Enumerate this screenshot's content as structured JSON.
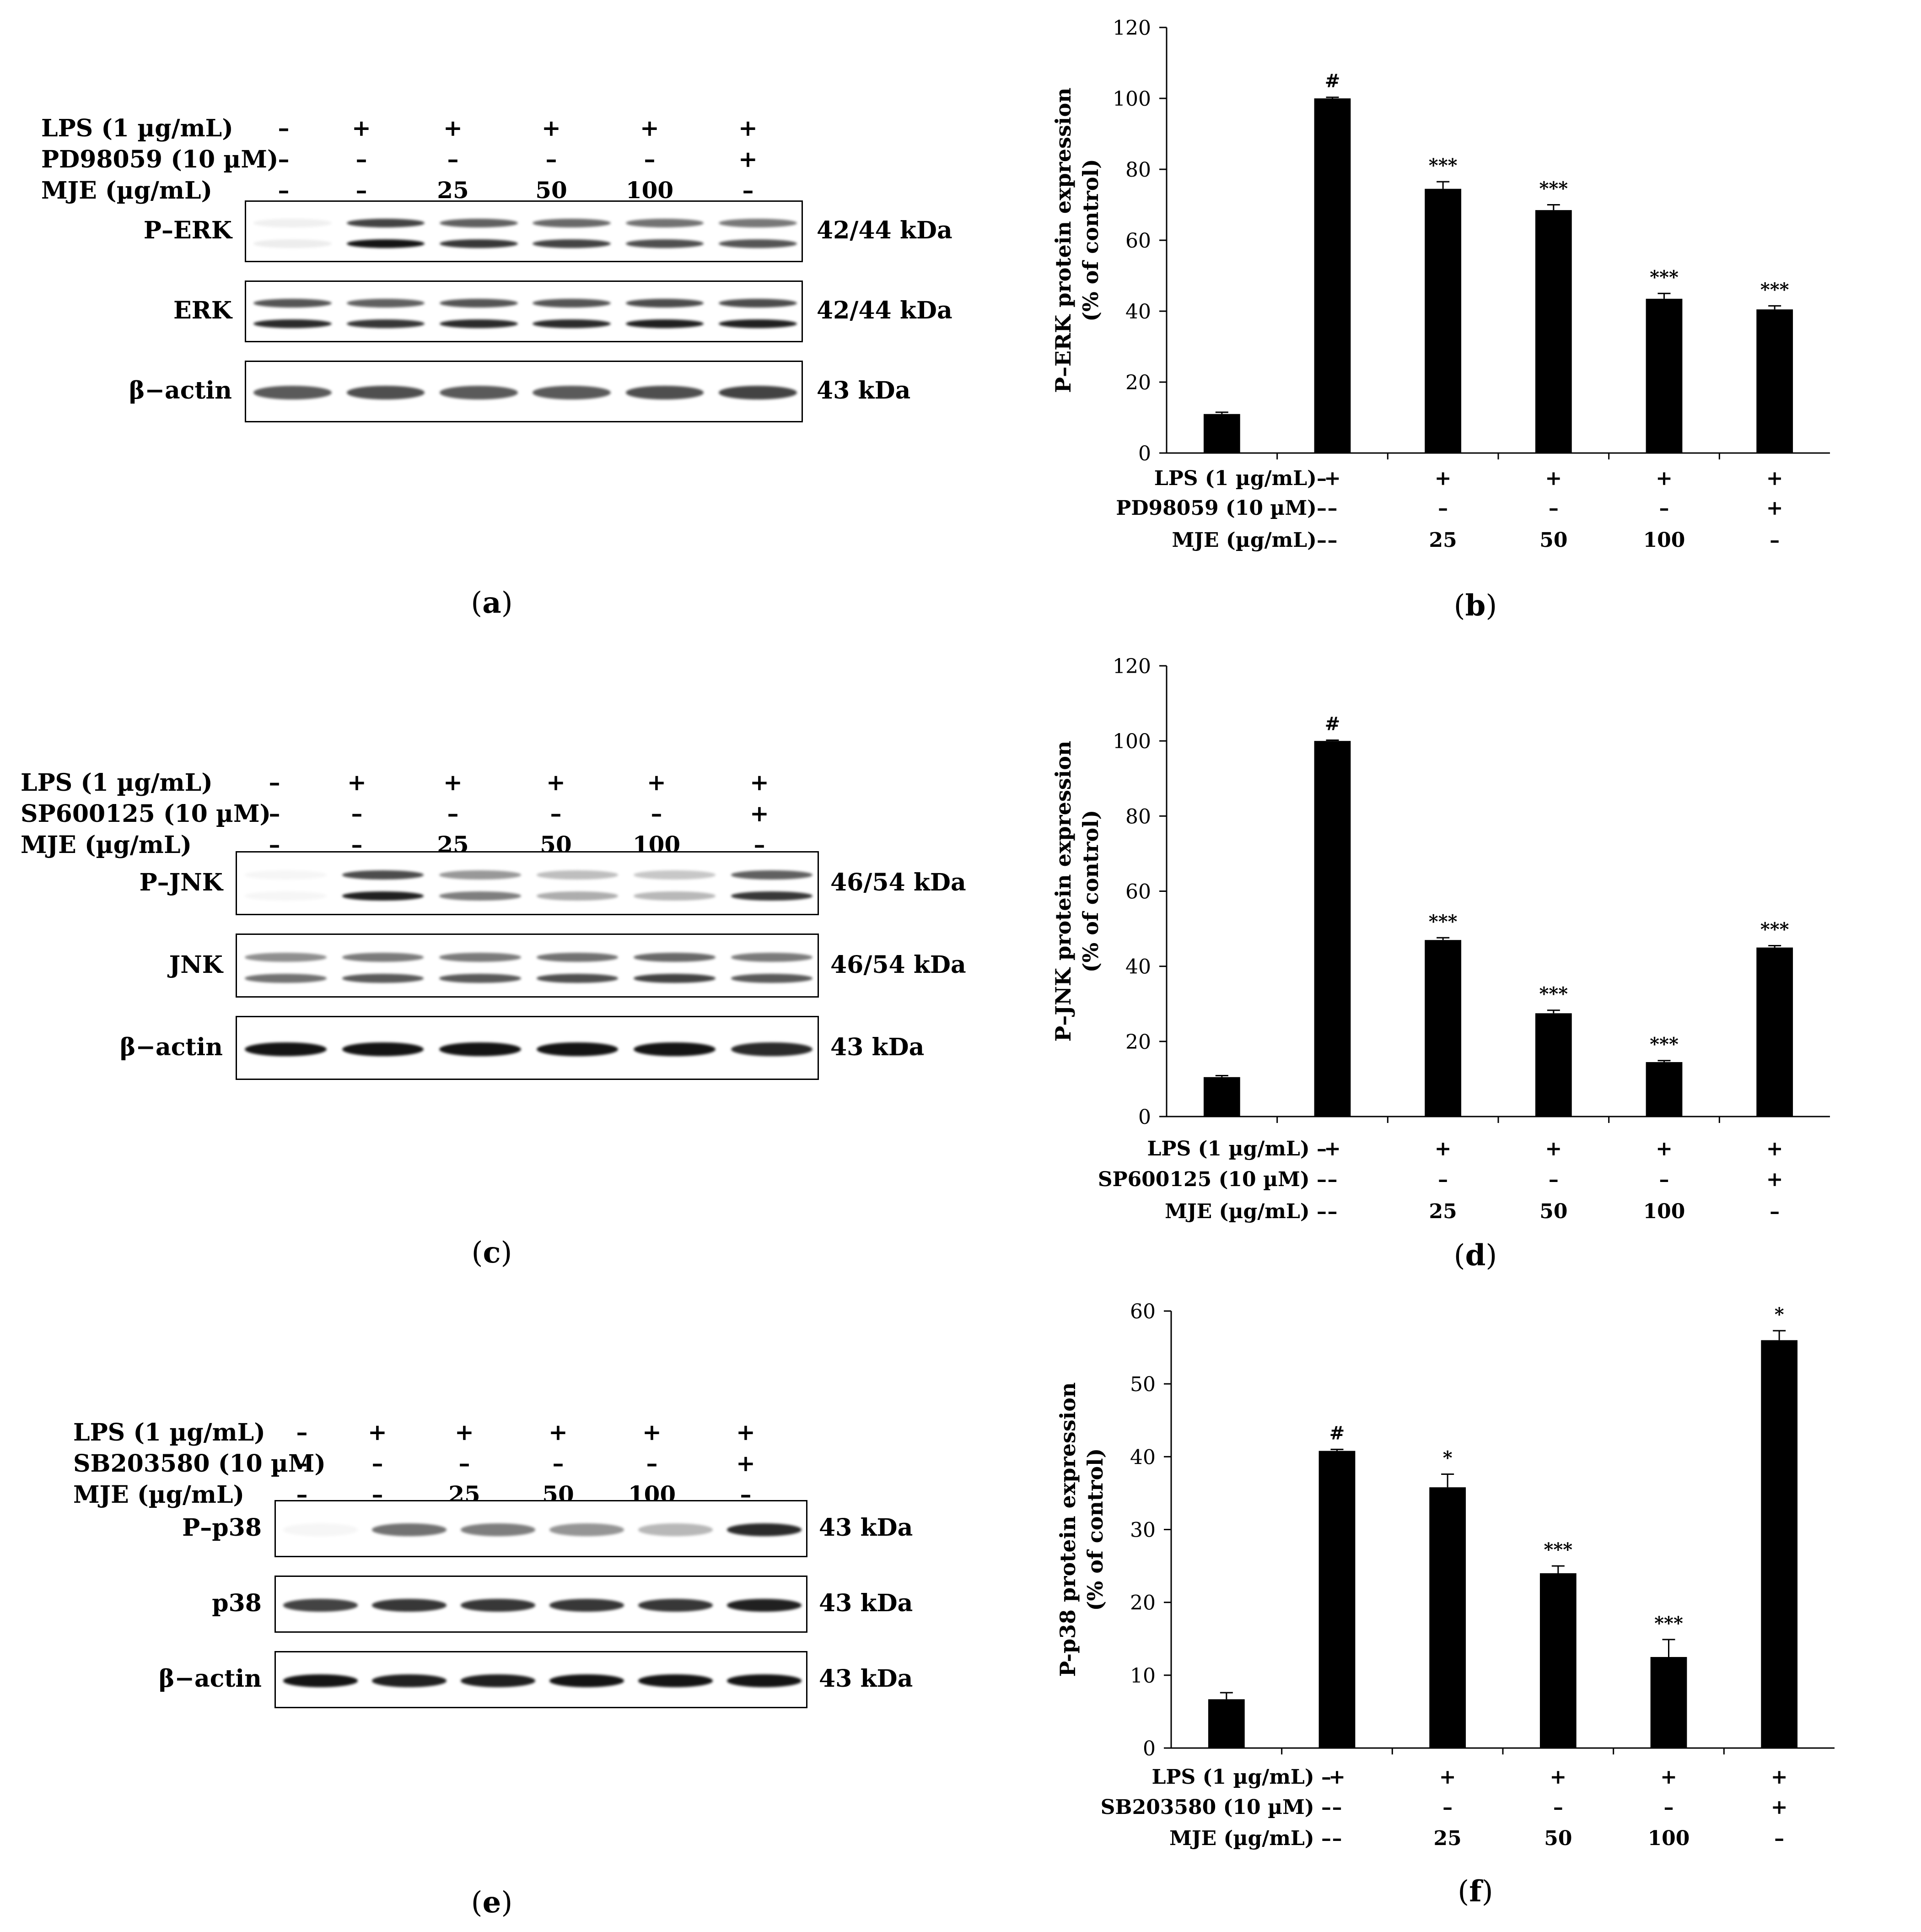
{
  "blots": [
    {
      "caption": "a",
      "conditions": [
        {
          "label": "LPS (1 µg/mL)",
          "values": [
            "–",
            "+",
            "+",
            "+",
            "+",
            "+"
          ]
        },
        {
          "label": "PD98059 (10 µM)",
          "values": [
            "–",
            "–",
            "–",
            "–",
            "–",
            "+"
          ]
        },
        {
          "label": "MJE (µg/mL)",
          "values": [
            "–",
            "–",
            "25",
            "50",
            "100",
            "–"
          ]
        }
      ],
      "rows": [
        {
          "label": "P–ERK",
          "kda": "42/44 kDa",
          "intensity": [
            0.08,
            1,
            0.85,
            0.8,
            0.75,
            0.72
          ],
          "double": true
        },
        {
          "label": "ERK",
          "kda": "42/44 kDa",
          "intensity": [
            0.9,
            0.85,
            0.9,
            0.9,
            0.95,
            0.95
          ],
          "double": true
        },
        {
          "label": "β−actin",
          "kda": "43 kDa",
          "intensity": [
            0.7,
            0.75,
            0.7,
            0.7,
            0.75,
            0.8
          ],
          "double": false
        }
      ]
    },
    {
      "caption": "c",
      "conditions": [
        {
          "label": "LPS (1 µg/mL)",
          "values": [
            "–",
            "+",
            "+",
            "+",
            "+",
            "+"
          ]
        },
        {
          "label": "SP600125 (10 µM)",
          "values": [
            "–",
            "–",
            "–",
            "–",
            "–",
            "+"
          ]
        },
        {
          "label": "MJE (µg/mL)",
          "values": [
            "–",
            "–",
            "25",
            "50",
            "100",
            "–"
          ]
        }
      ],
      "rows": [
        {
          "label": "P–JNK",
          "kda": "46/54 kDa",
          "intensity": [
            0.0,
            0.95,
            0.55,
            0.35,
            0.3,
            0.85
          ],
          "double": true
        },
        {
          "label": "JNK",
          "kda": "46/54 kDa",
          "intensity": [
            0.6,
            0.7,
            0.7,
            0.75,
            0.8,
            0.7
          ],
          "double": true
        },
        {
          "label": "β−actin",
          "kda": "43 kDa",
          "intensity": [
            1,
            1,
            1,
            1,
            1,
            0.9
          ],
          "double": false
        }
      ]
    },
    {
      "caption": "e",
      "conditions": [
        {
          "label": "LPS (1 µg/mL)",
          "values": [
            "–",
            "+",
            "+",
            "+",
            "+",
            "+"
          ]
        },
        {
          "label": "SB203580 (10 µM)",
          "values": [
            "–",
            "–",
            "–",
            "–",
            "–",
            "+"
          ]
        },
        {
          "label": "MJE (µg/mL)",
          "values": [
            "–",
            "–",
            "25",
            "50",
            "100",
            "–"
          ]
        }
      ],
      "rows": [
        {
          "label": "P–p38",
          "kda": "43 kDa",
          "intensity": [
            0.0,
            0.6,
            0.55,
            0.45,
            0.3,
            0.9
          ],
          "double": false
        },
        {
          "label": "p38",
          "kda": "43 kDa",
          "intensity": [
            0.8,
            0.85,
            0.85,
            0.85,
            0.85,
            0.95
          ],
          "double": false
        },
        {
          "label": "β−actin",
          "kda": "43 kDa",
          "intensity": [
            1,
            0.95,
            0.95,
            1,
            1,
            1
          ],
          "double": false
        }
      ]
    }
  ],
  "chart_data": [
    {
      "type": "bar",
      "caption": "b",
      "ylabel": "P–ERK protein expression\n(% of control)",
      "ylim": [
        0,
        120
      ],
      "yticks": [
        "0",
        "20",
        "40",
        "60",
        "80",
        "100",
        "120"
      ],
      "values": [
        11,
        100,
        74.5,
        68.5,
        43.5,
        40.5
      ],
      "errors": [
        0.5,
        0.3,
        2.0,
        1.5,
        1.5,
        1.0
      ],
      "annotations": [
        "",
        "#",
        "***",
        "***",
        "***",
        "***"
      ],
      "conditions": [
        {
          "label": "LPS (1 µg/mL)–",
          "values": [
            "+",
            "+",
            "+",
            "+",
            "+"
          ]
        },
        {
          "label": "PD98059 (10 µM)–",
          "values": [
            "–",
            "–",
            "–",
            "–",
            "+"
          ]
        },
        {
          "label": "MJE (µg/mL)–",
          "values": [
            "–",
            "25",
            "50",
            "100",
            "–"
          ]
        }
      ]
    },
    {
      "type": "bar",
      "caption": "d",
      "ylabel": "P–JNK protein expression\n(% of control)",
      "ylim": [
        0,
        120
      ],
      "yticks": [
        "0",
        "20",
        "40",
        "60",
        "80",
        "100",
        "120"
      ],
      "values": [
        10.5,
        100,
        47,
        27.5,
        14.5,
        45
      ],
      "errors": [
        0.4,
        0.2,
        0.6,
        0.8,
        0.4,
        0.5
      ],
      "annotations": [
        "",
        "#",
        "***",
        "***",
        "***",
        "***"
      ],
      "conditions": [
        {
          "label": "LPS (1 µg/mL) –",
          "values": [
            "+",
            "+",
            "+",
            "+",
            "+"
          ]
        },
        {
          "label": "SP600125 (10 µM) –",
          "values": [
            "–",
            "–",
            "–",
            "–",
            "+"
          ]
        },
        {
          "label": "MJE (µg/mL) –",
          "values": [
            "–",
            "25",
            "50",
            "100",
            "–"
          ]
        }
      ]
    },
    {
      "type": "bar",
      "caption": "f",
      "ylabel": "P-p38 protein expression\n(% of control)",
      "ylim": [
        0,
        60
      ],
      "yticks": [
        "0",
        "10",
        "20",
        "30",
        "40",
        "50",
        "60"
      ],
      "values": [
        6.7,
        40.8,
        35.8,
        24,
        12.5,
        56
      ],
      "errors": [
        0.9,
        0.2,
        1.8,
        1.0,
        2.4,
        1.3
      ],
      "annotations": [
        "",
        "#",
        "*",
        "***",
        "***",
        "*"
      ],
      "conditions": [
        {
          "label": "LPS (1 µg/mL) –",
          "values": [
            "+",
            "+",
            "+",
            "+",
            "+"
          ]
        },
        {
          "label": "SB203580 (10 µM) –",
          "values": [
            "–",
            "–",
            "–",
            "–",
            "+"
          ]
        },
        {
          "label": "MJE (µg/mL) –",
          "values": [
            "–",
            "25",
            "50",
            "100",
            "–"
          ]
        }
      ]
    }
  ]
}
